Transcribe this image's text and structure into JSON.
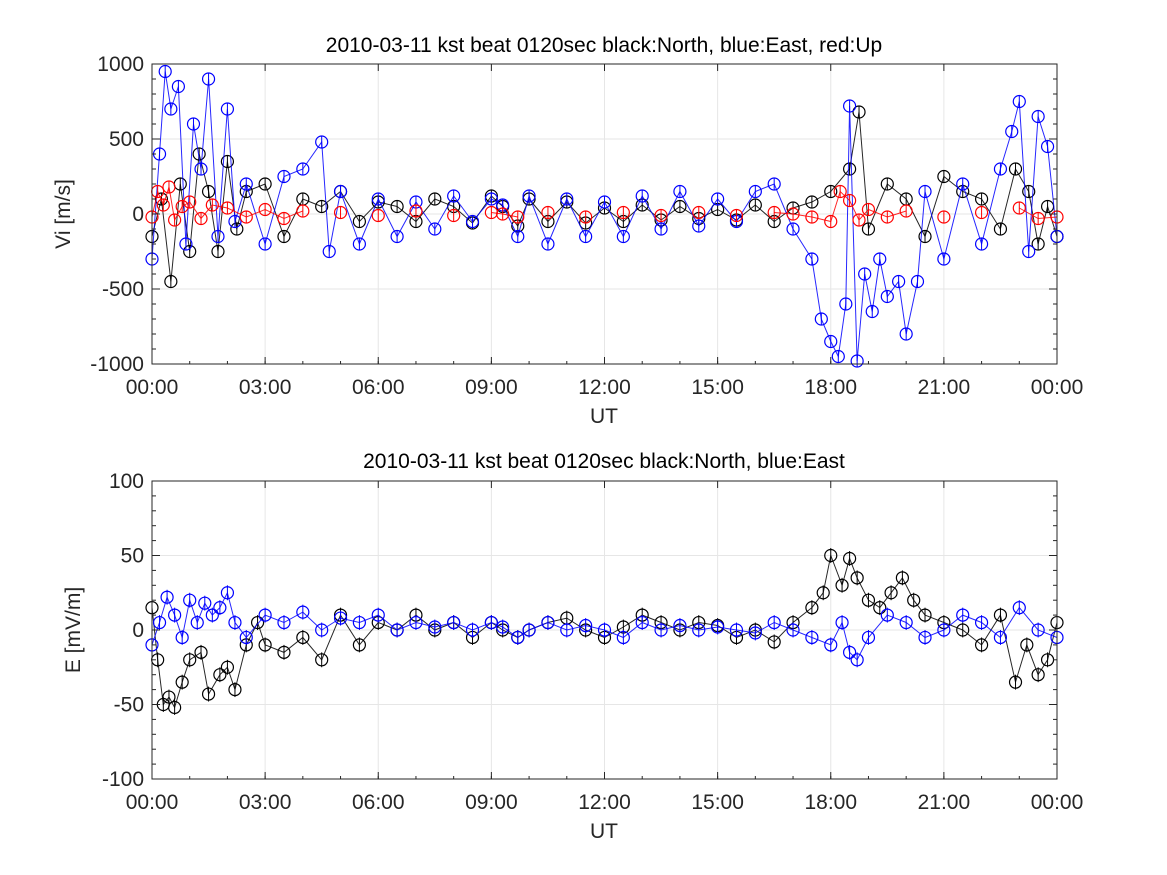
{
  "chart_data": [
    {
      "type": "scatter",
      "title": "2010-03-11 kst beat 0120sec black:North, blue:East, red:Up",
      "xlabel": "UT",
      "ylabel": "Vi [m/s]",
      "xlim": [
        0,
        24
      ],
      "ylim": [
        -1000,
        1000
      ],
      "x_tick_labels": [
        "00:00",
        "03:00",
        "06:00",
        "09:00",
        "12:00",
        "15:00",
        "18:00",
        "21:00",
        "00:00"
      ],
      "y_ticks": [
        -1000,
        -500,
        0,
        500,
        1000
      ],
      "grid": true,
      "marker": "circle-with-errorbar",
      "series": [
        {
          "name": "North",
          "color": "#000000",
          "x": [
            0.0,
            0.25,
            0.5,
            0.75,
            1.0,
            1.25,
            1.5,
            1.75,
            2.0,
            2.25,
            2.5,
            3.0,
            3.5,
            4.0,
            4.5,
            5.0,
            5.5,
            6.0,
            6.5,
            7.0,
            7.5,
            8.0,
            8.5,
            9.0,
            9.3,
            9.7,
            10.0,
            10.5,
            11.0,
            11.5,
            12.0,
            12.5,
            13.0,
            13.5,
            14.0,
            14.5,
            15.0,
            15.5,
            16.0,
            16.5,
            17.0,
            17.5,
            18.0,
            18.5,
            18.75,
            19.0,
            19.5,
            20.0,
            20.5,
            21.0,
            21.5,
            22.0,
            22.5,
            22.9,
            23.25,
            23.5,
            23.75,
            24.0
          ],
          "y": [
            -150,
            100,
            -450,
            200,
            -250,
            400,
            150,
            -250,
            350,
            -100,
            150,
            200,
            -150,
            100,
            50,
            150,
            -50,
            80,
            50,
            -50,
            100,
            50,
            -60,
            120,
            50,
            -80,
            100,
            -50,
            80,
            -60,
            40,
            -50,
            60,
            -40,
            50,
            -30,
            30,
            -40,
            60,
            -50,
            40,
            80,
            150,
            300,
            680,
            -100,
            200,
            100,
            -150,
            250,
            150,
            100,
            -100,
            300,
            150,
            -200,
            50,
            -150
          ]
        },
        {
          "name": "East",
          "color": "#0000ff",
          "x": [
            0.0,
            0.2,
            0.35,
            0.5,
            0.7,
            0.9,
            1.1,
            1.3,
            1.5,
            1.75,
            2.0,
            2.2,
            2.5,
            3.0,
            3.5,
            4.0,
            4.5,
            4.7,
            5.0,
            5.5,
            6.0,
            6.5,
            7.0,
            7.5,
            8.0,
            8.5,
            9.0,
            9.3,
            9.7,
            10.0,
            10.5,
            11.0,
            11.5,
            12.0,
            12.5,
            13.0,
            13.5,
            14.0,
            14.5,
            15.0,
            15.5,
            16.0,
            16.5,
            17.0,
            17.5,
            17.75,
            18.0,
            18.2,
            18.4,
            18.5,
            18.7,
            18.9,
            19.1,
            19.3,
            19.5,
            19.8,
            20.0,
            20.3,
            20.5,
            21.0,
            21.5,
            22.0,
            22.5,
            22.8,
            23.0,
            23.25,
            23.5,
            23.75,
            24.0
          ],
          "y": [
            -300,
            400,
            950,
            700,
            850,
            -200,
            600,
            300,
            900,
            -150,
            700,
            -50,
            200,
            -200,
            250,
            300,
            480,
            -250,
            150,
            -200,
            100,
            -150,
            80,
            -100,
            120,
            -50,
            100,
            60,
            -150,
            120,
            -200,
            100,
            -150,
            80,
            -150,
            120,
            -100,
            150,
            -80,
            100,
            -50,
            150,
            200,
            -100,
            -300,
            -700,
            -850,
            -950,
            -600,
            720,
            -980,
            -400,
            -650,
            -300,
            -550,
            -450,
            -800,
            -450,
            150,
            -300,
            200,
            -200,
            300,
            550,
            750,
            -250,
            650,
            450,
            -150
          ]
        },
        {
          "name": "Up",
          "color": "#ff0000",
          "x": [
            0.0,
            0.15,
            0.3,
            0.45,
            0.6,
            0.8,
            1.0,
            1.3,
            1.6,
            2.0,
            2.5,
            3.0,
            3.5,
            4.0,
            5.0,
            6.0,
            7.0,
            8.0,
            9.0,
            9.3,
            9.7,
            10.5,
            11.5,
            12.5,
            13.5,
            14.5,
            15.5,
            16.5,
            17.0,
            17.5,
            18.0,
            18.25,
            18.5,
            18.75,
            19.0,
            19.5,
            20.0,
            21.0,
            22.0,
            23.0,
            23.5,
            24.0
          ],
          "y": [
            -20,
            150,
            60,
            180,
            -40,
            50,
            80,
            -30,
            60,
            40,
            -20,
            30,
            -30,
            20,
            10,
            -10,
            20,
            -10,
            10,
            0,
            -20,
            10,
            -20,
            10,
            -10,
            10,
            -10,
            10,
            0,
            -20,
            -50,
            150,
            90,
            -40,
            30,
            -20,
            20,
            -20,
            10,
            40,
            -30,
            -20
          ]
        }
      ]
    },
    {
      "type": "scatter",
      "title": "2010-03-11 kst beat 0120sec black:North, blue:East",
      "xlabel": "UT",
      "ylabel": "E [mV/m]",
      "xlim": [
        0,
        24
      ],
      "ylim": [
        -100,
        100
      ],
      "x_tick_labels": [
        "00:00",
        "03:00",
        "06:00",
        "09:00",
        "12:00",
        "15:00",
        "18:00",
        "21:00",
        "00:00"
      ],
      "y_ticks": [
        -100,
        -50,
        0,
        50,
        100
      ],
      "grid": true,
      "marker": "circle-with-errorbar",
      "series": [
        {
          "name": "North",
          "color": "#000000",
          "x": [
            0.0,
            0.15,
            0.3,
            0.45,
            0.6,
            0.8,
            1.0,
            1.3,
            1.5,
            1.8,
            2.0,
            2.2,
            2.5,
            2.8,
            3.0,
            3.5,
            4.0,
            4.5,
            5.0,
            5.5,
            6.0,
            6.5,
            7.0,
            7.5,
            8.0,
            8.5,
            9.0,
            9.3,
            9.7,
            10.0,
            10.5,
            11.0,
            11.5,
            12.0,
            12.5,
            13.0,
            13.5,
            14.0,
            14.5,
            15.0,
            15.5,
            16.0,
            16.5,
            17.0,
            17.5,
            17.8,
            18.0,
            18.3,
            18.5,
            18.7,
            19.0,
            19.3,
            19.6,
            19.9,
            20.2,
            20.5,
            21.0,
            21.5,
            22.0,
            22.5,
            22.9,
            23.2,
            23.5,
            23.75,
            24.0
          ],
          "y": [
            15,
            -20,
            -50,
            -45,
            -52,
            -35,
            -20,
            -15,
            -43,
            -30,
            -25,
            -40,
            -10,
            5,
            -10,
            -15,
            -5,
            -20,
            10,
            -10,
            5,
            0,
            10,
            0,
            5,
            -5,
            5,
            0,
            -5,
            0,
            5,
            8,
            0,
            -5,
            2,
            10,
            5,
            0,
            5,
            3,
            -5,
            0,
            -8,
            5,
            15,
            25,
            50,
            30,
            48,
            35,
            20,
            15,
            25,
            35,
            20,
            10,
            5,
            0,
            -10,
            10,
            -35,
            -10,
            -30,
            -20,
            5
          ]
        },
        {
          "name": "East",
          "color": "#0000ff",
          "x": [
            0.0,
            0.2,
            0.4,
            0.6,
            0.8,
            1.0,
            1.2,
            1.4,
            1.6,
            1.8,
            2.0,
            2.2,
            2.5,
            3.0,
            3.5,
            4.0,
            4.5,
            5.0,
            5.5,
            6.0,
            6.5,
            7.0,
            7.5,
            8.0,
            8.5,
            9.0,
            9.3,
            9.7,
            10.0,
            10.5,
            11.0,
            11.5,
            12.0,
            12.5,
            13.0,
            13.5,
            14.0,
            14.5,
            15.0,
            15.5,
            16.0,
            16.5,
            17.0,
            17.5,
            18.0,
            18.3,
            18.5,
            18.7,
            19.0,
            19.5,
            20.0,
            20.5,
            21.0,
            21.5,
            22.0,
            22.5,
            23.0,
            23.5,
            24.0
          ],
          "y": [
            -10,
            5,
            22,
            10,
            -5,
            20,
            5,
            18,
            10,
            15,
            25,
            5,
            -5,
            10,
            5,
            12,
            0,
            8,
            5,
            10,
            0,
            5,
            2,
            5,
            0,
            5,
            2,
            -5,
            0,
            5,
            0,
            3,
            0,
            -5,
            5,
            0,
            3,
            0,
            2,
            0,
            -2,
            5,
            0,
            -5,
            -10,
            5,
            -15,
            -20,
            -5,
            10,
            5,
            -5,
            0,
            10,
            5,
            -5,
            15,
            0,
            -5
          ]
        }
      ]
    }
  ]
}
